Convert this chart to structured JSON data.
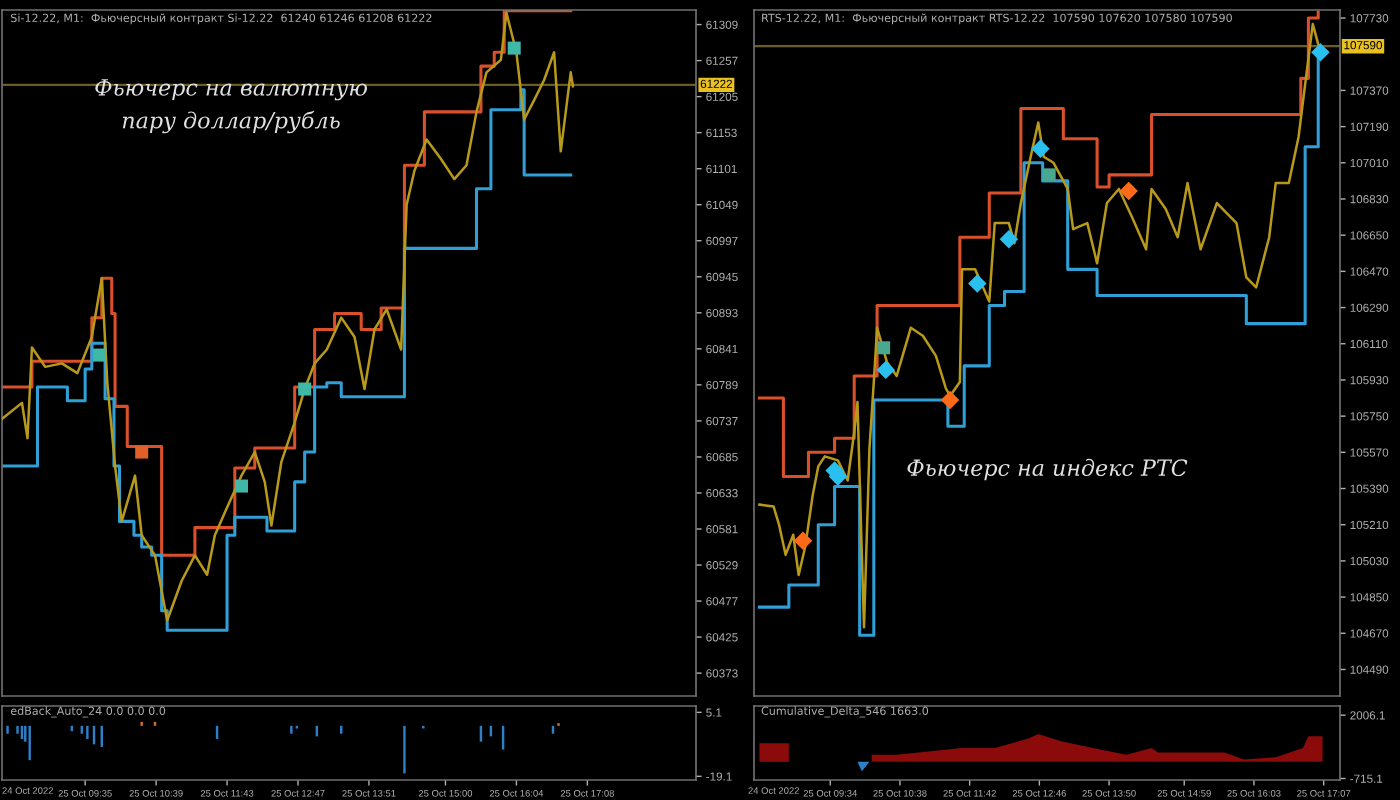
{
  "chart_data": [
    {
      "type": "line",
      "title": "Si-12.22, M1:  Фьючерсный контракт Si-12.22  61240 61246 61208 61222",
      "annotations": [
        "Фьючерс на валютную\nпару доллар/рубль"
      ],
      "xlim": [
        "2022-10-25T08:20",
        "2022-10-25T18:46"
      ],
      "ylim": [
        60340,
        61330
      ],
      "yticks": [
        61309,
        61257,
        61205,
        61153,
        61101,
        61049,
        60997,
        60945,
        60893,
        60841,
        60789,
        60737,
        60685,
        60633,
        60581,
        60529,
        60477,
        60425,
        60373
      ],
      "tick_labels": "y",
      "grid": false,
      "ref_lines": [
        {
          "axis": "y",
          "value": 61222,
          "label": "61222",
          "color": "#6b5e1e"
        }
      ],
      "series": [
        {
          "type": "step",
          "color": "#d9502a",
          "x": [
            "2022-10-25T08:20",
            "2022-10-25T08:47",
            "2022-10-25T09:41",
            "2022-10-25T09:50",
            "2022-10-25T09:59",
            "2022-10-25T10:02",
            "2022-10-25T10:13",
            "2022-10-25T10:44",
            "2022-10-25T11:14",
            "2022-10-25T11:50",
            "2022-10-25T12:08",
            "2022-10-25T12:44",
            "2022-10-25T13:02",
            "2022-10-25T13:20",
            "2022-10-25T13:44",
            "2022-10-25T14:02",
            "2022-10-25T14:23",
            "2022-10-25T14:41",
            "2022-10-25T15:32",
            "2022-10-25T15:44",
            "2022-10-25T15:53",
            "2022-10-25T16:53"
          ],
          "values": [
            60786,
            60823,
            60886,
            60943,
            60892,
            60758,
            60700,
            60543,
            60583,
            60669,
            60698,
            60786,
            60869,
            60892,
            60869,
            60900,
            61106,
            61183,
            61249,
            61269,
            61329,
            61329
          ]
        },
        {
          "type": "step",
          "color": "#2f9fd6",
          "x": [
            "2022-10-25T08:20",
            "2022-10-25T08:52",
            "2022-10-25T09:19",
            "2022-10-25T09:35",
            "2022-10-25T09:41",
            "2022-10-25T09:53",
            "2022-10-25T10:01",
            "2022-10-25T10:06",
            "2022-10-25T10:19",
            "2022-10-25T10:26",
            "2022-10-25T10:35",
            "2022-10-25T10:44",
            "2022-10-25T10:49",
            "2022-10-25T11:43",
            "2022-10-25T11:50",
            "2022-10-25T12:19",
            "2022-10-25T12:44",
            "2022-10-25T12:53",
            "2022-10-25T13:02",
            "2022-10-25T13:13",
            "2022-10-25T13:26",
            "2022-10-25T14:23",
            "2022-10-25T15:28",
            "2022-10-25T15:41",
            "2022-10-25T16:08",
            "2022-10-25T16:11",
            "2022-10-25T16:53"
          ],
          "values": [
            60672,
            60786,
            60766,
            60812,
            60849,
            60769,
            60672,
            60592,
            60572,
            60555,
            60543,
            60463,
            60435,
            60572,
            60598,
            60578,
            60649,
            60692,
            60786,
            60792,
            60772,
            60986,
            61072,
            61186,
            61215,
            61092,
            61092
          ]
        },
        {
          "type": "line",
          "color": "#b89a1a",
          "x": [
            "2022-10-25T08:20",
            "2022-10-25T08:38",
            "2022-10-25T08:43",
            "2022-10-25T08:47",
            "2022-10-25T08:59",
            "2022-10-25T09:14",
            "2022-10-25T09:28",
            "2022-10-25T09:41",
            "2022-10-25T09:50",
            "2022-10-25T09:55",
            "2022-10-25T10:02",
            "2022-10-25T10:08",
            "2022-10-25T10:20",
            "2022-10-25T10:26",
            "2022-10-25T10:38",
            "2022-10-25T10:49",
            "2022-10-25T11:02",
            "2022-10-25T11:14",
            "2022-10-25T11:25",
            "2022-10-25T11:32",
            "2022-10-25T11:43",
            "2022-10-25T11:56",
            "2022-10-25T12:08",
            "2022-10-25T12:17",
            "2022-10-25T12:23",
            "2022-10-25T12:32",
            "2022-10-25T12:44",
            "2022-10-25T12:53",
            "2022-10-25T13:02",
            "2022-10-25T13:13",
            "2022-10-25T13:26",
            "2022-10-25T13:38",
            "2022-10-25T13:47",
            "2022-10-25T13:56",
            "2022-10-25T14:07",
            "2022-10-25T14:20",
            "2022-10-25T14:25",
            "2022-10-25T14:32",
            "2022-10-25T14:43",
            "2022-10-25T14:56",
            "2022-10-25T15:08",
            "2022-10-25T15:19",
            "2022-10-25T15:28",
            "2022-10-25T15:37",
            "2022-10-25T15:50",
            "2022-10-25T15:55",
            "2022-10-25T16:04",
            "2022-10-25T16:11",
            "2022-10-25T16:20",
            "2022-10-25T16:29",
            "2022-10-25T16:38",
            "2022-10-25T16:44",
            "2022-10-25T16:53",
            "2022-10-25T16:55"
          ],
          "values": [
            60740,
            60763,
            60712,
            60843,
            60815,
            60820,
            60806,
            60858,
            60943,
            60792,
            60672,
            60592,
            60658,
            60572,
            60543,
            60449,
            60506,
            60543,
            60515,
            60572,
            60612,
            60658,
            60692,
            60649,
            60586,
            60678,
            60735,
            60783,
            60820,
            60840,
            60886,
            60858,
            60783,
            60869,
            60898,
            60840,
            61049,
            61098,
            61143,
            61115,
            61086,
            61106,
            61183,
            61240,
            61258,
            61326,
            61269,
            61172,
            61200,
            61229,
            61269,
            61126,
            61240,
            61220
          ]
        },
        {
          "type": "scatter",
          "marker": "square",
          "color": "#3fb8a8",
          "x": [
            "2022-10-25T09:48",
            "2022-10-25T11:56",
            "2022-10-25T12:53",
            "2022-10-25T16:02"
          ],
          "values": [
            60832,
            60643,
            60783,
            61275
          ]
        },
        {
          "type": "scatter",
          "marker": "square",
          "color": "#e0602a",
          "x": [
            "2022-10-25T10:26"
          ],
          "values": [
            60692
          ]
        }
      ]
    },
    {
      "type": "bar",
      "title": "edBack_Auto_24 0.0 0.0 0.0",
      "xlim": [
        "2022-10-25T08:20",
        "2022-10-25T18:46"
      ],
      "ylim": [
        -20.5,
        7.5
      ],
      "yticks": [
        5.1,
        -19.1
      ],
      "annotations": [
        "24 Oct 2022"
      ],
      "xticks": [
        {
          "value": "2022-10-25T09:35",
          "label": "25 Oct 09:35"
        },
        {
          "value": "2022-10-25T10:39",
          "label": "25 Oct 10:39"
        },
        {
          "value": "2022-10-25T11:43",
          "label": "25 Oct 11:43"
        },
        {
          "value": "2022-10-25T12:47",
          "label": "25 Oct 12:47"
        },
        {
          "value": "2022-10-25T13:51",
          "label": "25 Oct 13:51"
        },
        {
          "value": "2022-10-25T15:00",
          "label": "25 Oct 15:00"
        },
        {
          "value": "2022-10-25T16:04",
          "label": "25 Oct 16:04"
        },
        {
          "value": "2022-10-25T17:08",
          "label": "25 Oct 17:08"
        }
      ],
      "grid": false,
      "series": [
        {
          "color": "#2f7fc6",
          "x": [
            "2022-10-25T08:25",
            "2022-10-25T08:34",
            "2022-10-25T08:38",
            "2022-10-25T08:41",
            "2022-10-25T08:45",
            "2022-10-25T09:23",
            "2022-10-25T09:32",
            "2022-10-25T09:37",
            "2022-10-25T09:43",
            "2022-10-25T09:50",
            "2022-10-25T11:34",
            "2022-10-25T12:41",
            "2022-10-25T12:46",
            "2022-10-25T13:04",
            "2022-10-25T13:26",
            "2022-10-25T14:23",
            "2022-10-25T14:40",
            "2022-10-25T15:32",
            "2022-10-25T15:41",
            "2022-10-25T15:52",
            "2022-10-25T16:37"
          ],
          "values": [
            -3,
            -3,
            -5,
            -6,
            -13,
            -2,
            -3,
            -5,
            -7,
            -8,
            -5,
            -3,
            -1,
            -4,
            -3,
            -18,
            -1,
            -6,
            -4,
            -9,
            -3
          ]
        },
        {
          "color": "#d0702a",
          "x": [
            "2022-10-25T10:26",
            "2022-10-25T10:38",
            "2022-10-25T16:42"
          ],
          "values": [
            1.5,
            1.5,
            1
          ]
        }
      ]
    },
    {
      "type": "line",
      "title": "RTS-12.22, M1:  Фьючерсный контракт RTS-12.22  107590 107620 107580 107590",
      "annotations": [
        "Фьючерс на индекс РТС"
      ],
      "xlim": [
        "2022-10-25T08:24",
        "2022-10-25T17:22"
      ],
      "ylim": [
        104358,
        107770
      ],
      "yticks": [
        107730,
        107370,
        107190,
        107010,
        106830,
        106650,
        106470,
        106290,
        106110,
        105930,
        105750,
        105570,
        105390,
        105210,
        105030,
        104850,
        104670,
        104490
      ],
      "tick_labels": "y",
      "grid": false,
      "ref_lines": [
        {
          "axis": "y",
          "value": 107590,
          "label": "107590",
          "color": "#6b5e1e"
        }
      ],
      "series": [
        {
          "type": "step",
          "color": "#d9502a",
          "x": [
            "2022-10-25T08:29",
            "2022-10-25T08:51",
            "2022-10-25T09:14",
            "2022-10-25T09:38",
            "2022-10-25T09:56",
            "2022-10-25T10:17",
            "2022-10-25T11:33",
            "2022-10-25T12:00",
            "2022-10-25T12:29",
            "2022-10-25T13:08",
            "2022-10-25T13:39",
            "2022-10-25T13:50",
            "2022-10-25T14:29",
            "2022-10-25T16:46",
            "2022-10-25T16:53",
            "2022-10-25T17:02"
          ],
          "values": [
            105840,
            105450,
            105570,
            105640,
            105950,
            106300,
            106640,
            106860,
            107280,
            107130,
            106890,
            106950,
            107250,
            107430,
            107730,
            107760
          ]
        },
        {
          "type": "step",
          "color": "#2f9fd6",
          "x": [
            "2022-10-25T08:29",
            "2022-10-25T08:56",
            "2022-10-25T09:23",
            "2022-10-25T09:38",
            "2022-10-25T10:01",
            "2022-10-25T10:14",
            "2022-10-25T11:22",
            "2022-10-25T11:37",
            "2022-10-25T12:00",
            "2022-10-25T12:14",
            "2022-10-25T12:32",
            "2022-10-25T12:49",
            "2022-10-25T13:12",
            "2022-10-25T13:39",
            "2022-10-25T15:56",
            "2022-10-25T16:50",
            "2022-10-25T17:02"
          ],
          "values": [
            104800,
            104910,
            105210,
            105400,
            104660,
            105830,
            105700,
            106000,
            106300,
            106370,
            107010,
            106920,
            106480,
            106350,
            106210,
            107090,
            107570
          ]
        },
        {
          "type": "line",
          "color": "#b89a1a",
          "x": [
            "2022-10-25T08:29",
            "2022-10-25T08:42",
            "2022-10-25T08:47",
            "2022-10-25T08:53",
            "2022-10-25T09:00",
            "2022-10-25T09:05",
            "2022-10-25T09:11",
            "2022-10-25T09:18",
            "2022-10-25T09:23",
            "2022-10-25T09:29",
            "2022-10-25T09:41",
            "2022-10-25T09:50",
            "2022-10-25T09:56",
            "2022-10-25T09:59",
            "2022-10-25T10:03",
            "2022-10-25T10:05",
            "2022-10-25T10:10",
            "2022-10-25T10:14",
            "2022-10-25T10:17",
            "2022-10-25T10:26",
            "2022-10-25T10:35",
            "2022-10-25T10:48",
            "2022-10-25T10:59",
            "2022-10-25T11:11",
            "2022-10-25T11:20",
            "2022-10-25T11:24",
            "2022-10-25T11:33",
            "2022-10-25T11:35",
            "2022-10-25T11:47",
            "2022-10-25T12:00",
            "2022-10-25T12:05",
            "2022-10-25T12:18",
            "2022-10-25T12:23",
            "2022-10-25T12:29",
            "2022-10-25T12:38",
            "2022-10-25T12:45",
            "2022-10-25T12:50",
            "2022-10-25T12:59",
            "2022-10-25T13:12",
            "2022-10-25T13:17",
            "2022-10-25T13:30",
            "2022-10-25T13:39",
            "2022-10-25T13:48",
            "2022-10-25T13:59",
            "2022-10-25T14:11",
            "2022-10-25T14:24",
            "2022-10-25T14:29",
            "2022-10-25T14:42",
            "2022-10-25T14:53",
            "2022-10-25T15:02",
            "2022-10-25T15:14",
            "2022-10-25T15:29",
            "2022-10-25T15:47",
            "2022-10-25T15:56",
            "2022-10-25T16:05",
            "2022-10-25T16:17",
            "2022-10-25T16:23",
            "2022-10-25T16:35",
            "2022-10-25T16:44",
            "2022-10-25T16:50",
            "2022-10-25T16:57",
            "2022-10-25T17:02",
            "2022-10-25T17:04"
          ],
          "values": [
            105310,
            105300,
            105210,
            105060,
            105160,
            104960,
            105100,
            105360,
            105500,
            105550,
            105530,
            105430,
            105670,
            105820,
            105060,
            104700,
            105590,
            105920,
            106190,
            106020,
            105950,
            106190,
            106150,
            106050,
            105890,
            105850,
            105920,
            106480,
            106480,
            106320,
            106710,
            106710,
            106610,
            106810,
            107040,
            107210,
            107040,
            107010,
            106880,
            106680,
            106710,
            106510,
            106810,
            106880,
            106740,
            106580,
            106880,
            106780,
            106640,
            106910,
            106580,
            106810,
            106710,
            106440,
            106390,
            106640,
            106910,
            106910,
            107140,
            107400,
            107700,
            107600,
            107570
          ]
        },
        {
          "type": "scatter",
          "marker": "diamond",
          "color": "#29c0f0",
          "x": [
            "2022-10-25T09:38",
            "2022-10-25T09:41",
            "2022-10-25T10:25",
            "2022-10-25T11:49",
            "2022-10-25T12:18",
            "2022-10-25T12:47",
            "2022-10-25T17:04"
          ],
          "values": [
            105480,
            105450,
            105980,
            106410,
            106630,
            107080,
            107560
          ]
        },
        {
          "type": "scatter",
          "marker": "diamond",
          "color": "#ff6a1a",
          "x": [
            "2022-10-25T09:09",
            "2022-10-25T11:24",
            "2022-10-25T14:08"
          ],
          "values": [
            105130,
            105830,
            106870
          ]
        },
        {
          "type": "scatter",
          "marker": "square",
          "color": "#4aa890",
          "x": [
            "2022-10-25T10:23",
            "2022-10-25T12:55"
          ],
          "values": [
            106090,
            106950
          ]
        }
      ]
    },
    {
      "type": "area",
      "title": "Cumulative_Delta_546 1663.0",
      "xlim": [
        "2022-10-25T08:24",
        "2022-10-25T17:22"
      ],
      "ylim": [
        -780,
        2400
      ],
      "yticks": [
        2006.1,
        -715.1
      ],
      "annotations": [
        "24 Oct 2022"
      ],
      "xticks": [
        {
          "value": "2022-10-25T09:34",
          "label": "25 Oct 09:34"
        },
        {
          "value": "2022-10-25T10:38",
          "label": "25 Oct 10:38"
        },
        {
          "value": "2022-10-25T11:42",
          "label": "25 Oct 11:42"
        },
        {
          "value": "2022-10-25T12:46",
          "label": "25 Oct 12:46"
        },
        {
          "value": "2022-10-25T13:50",
          "label": "25 Oct 13:50"
        },
        {
          "value": "2022-10-25T14:59",
          "label": "25 Oct 14:59"
        },
        {
          "value": "2022-10-25T16:03",
          "label": "25 Oct 16:03"
        },
        {
          "value": "2022-10-25T17:07",
          "label": "25 Oct 17:07"
        }
      ],
      "grid": false,
      "series": [
        {
          "color": "#8b0a0a",
          "x": [
            "2022-10-25T08:29",
            "2022-10-25T08:56",
            "2022-10-25T08:58",
            "2022-10-25T10:12",
            "2022-10-25T10:35",
            "2022-10-25T11:35",
            "2022-10-25T12:05",
            "2022-10-25T12:36",
            "2022-10-25T12:45",
            "2022-10-25T13:05",
            "2022-10-25T13:35",
            "2022-10-25T14:06",
            "2022-10-25T14:29",
            "2022-10-25T14:35",
            "2022-10-25T15:36",
            "2022-10-25T15:54",
            "2022-10-25T16:23",
            "2022-10-25T16:48",
            "2022-10-25T16:53",
            "2022-10-25T17:06"
          ],
          "values": [
            800,
            800,
            null,
            300,
            300,
            600,
            600,
            1000,
            1200,
            900,
            600,
            300,
            600,
            400,
            400,
            100,
            200,
            600,
            1100,
            1100
          ]
        },
        {
          "color": "#2f7fc6",
          "x": [
            "2022-10-25T08:58",
            "2022-10-25T09:05",
            "2022-10-25T09:59",
            "2022-10-25T10:03",
            "2022-10-25T10:10"
          ],
          "values": [
            0,
            0,
            0,
            -400,
            0
          ]
        }
      ]
    }
  ]
}
